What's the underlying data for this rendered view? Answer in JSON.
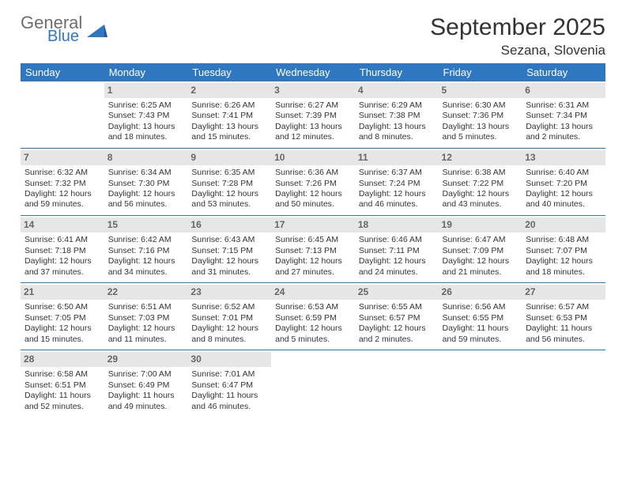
{
  "logo": {
    "line1": "General",
    "line2": "Blue",
    "accent": "#2f78c1",
    "gray": "#6e6e6e"
  },
  "header": {
    "month_title": "September 2025",
    "location": "Sezana, Slovenia"
  },
  "colors": {
    "header_bg": "#2f78c1",
    "header_fg": "#ffffff",
    "daynum_bg": "#e6e6e6",
    "daynum_fg": "#666666",
    "rule": "#2f78c1",
    "body_text": "#333333",
    "page_bg": "#ffffff"
  },
  "typography": {
    "month_title_pt": 30,
    "location_pt": 17,
    "weekday_pt": 13,
    "daynum_pt": 12,
    "cell_pt": 10.5
  },
  "calendar": {
    "weekdays": [
      "Sunday",
      "Monday",
      "Tuesday",
      "Wednesday",
      "Thursday",
      "Friday",
      "Saturday"
    ],
    "rows": [
      [
        null,
        {
          "n": "1",
          "sunrise": "6:25 AM",
          "sunset": "7:43 PM",
          "daylight": "13 hours and 18 minutes."
        },
        {
          "n": "2",
          "sunrise": "6:26 AM",
          "sunset": "7:41 PM",
          "daylight": "13 hours and 15 minutes."
        },
        {
          "n": "3",
          "sunrise": "6:27 AM",
          "sunset": "7:39 PM",
          "daylight": "13 hours and 12 minutes."
        },
        {
          "n": "4",
          "sunrise": "6:29 AM",
          "sunset": "7:38 PM",
          "daylight": "13 hours and 8 minutes."
        },
        {
          "n": "5",
          "sunrise": "6:30 AM",
          "sunset": "7:36 PM",
          "daylight": "13 hours and 5 minutes."
        },
        {
          "n": "6",
          "sunrise": "6:31 AM",
          "sunset": "7:34 PM",
          "daylight": "13 hours and 2 minutes."
        }
      ],
      [
        {
          "n": "7",
          "sunrise": "6:32 AM",
          "sunset": "7:32 PM",
          "daylight": "12 hours and 59 minutes."
        },
        {
          "n": "8",
          "sunrise": "6:34 AM",
          "sunset": "7:30 PM",
          "daylight": "12 hours and 56 minutes."
        },
        {
          "n": "9",
          "sunrise": "6:35 AM",
          "sunset": "7:28 PM",
          "daylight": "12 hours and 53 minutes."
        },
        {
          "n": "10",
          "sunrise": "6:36 AM",
          "sunset": "7:26 PM",
          "daylight": "12 hours and 50 minutes."
        },
        {
          "n": "11",
          "sunrise": "6:37 AM",
          "sunset": "7:24 PM",
          "daylight": "12 hours and 46 minutes."
        },
        {
          "n": "12",
          "sunrise": "6:38 AM",
          "sunset": "7:22 PM",
          "daylight": "12 hours and 43 minutes."
        },
        {
          "n": "13",
          "sunrise": "6:40 AM",
          "sunset": "7:20 PM",
          "daylight": "12 hours and 40 minutes."
        }
      ],
      [
        {
          "n": "14",
          "sunrise": "6:41 AM",
          "sunset": "7:18 PM",
          "daylight": "12 hours and 37 minutes."
        },
        {
          "n": "15",
          "sunrise": "6:42 AM",
          "sunset": "7:16 PM",
          "daylight": "12 hours and 34 minutes."
        },
        {
          "n": "16",
          "sunrise": "6:43 AM",
          "sunset": "7:15 PM",
          "daylight": "12 hours and 31 minutes."
        },
        {
          "n": "17",
          "sunrise": "6:45 AM",
          "sunset": "7:13 PM",
          "daylight": "12 hours and 27 minutes."
        },
        {
          "n": "18",
          "sunrise": "6:46 AM",
          "sunset": "7:11 PM",
          "daylight": "12 hours and 24 minutes."
        },
        {
          "n": "19",
          "sunrise": "6:47 AM",
          "sunset": "7:09 PM",
          "daylight": "12 hours and 21 minutes."
        },
        {
          "n": "20",
          "sunrise": "6:48 AM",
          "sunset": "7:07 PM",
          "daylight": "12 hours and 18 minutes."
        }
      ],
      [
        {
          "n": "21",
          "sunrise": "6:50 AM",
          "sunset": "7:05 PM",
          "daylight": "12 hours and 15 minutes."
        },
        {
          "n": "22",
          "sunrise": "6:51 AM",
          "sunset": "7:03 PM",
          "daylight": "12 hours and 11 minutes."
        },
        {
          "n": "23",
          "sunrise": "6:52 AM",
          "sunset": "7:01 PM",
          "daylight": "12 hours and 8 minutes."
        },
        {
          "n": "24",
          "sunrise": "6:53 AM",
          "sunset": "6:59 PM",
          "daylight": "12 hours and 5 minutes."
        },
        {
          "n": "25",
          "sunrise": "6:55 AM",
          "sunset": "6:57 PM",
          "daylight": "12 hours and 2 minutes."
        },
        {
          "n": "26",
          "sunrise": "6:56 AM",
          "sunset": "6:55 PM",
          "daylight": "11 hours and 59 minutes."
        },
        {
          "n": "27",
          "sunrise": "6:57 AM",
          "sunset": "6:53 PM",
          "daylight": "11 hours and 56 minutes."
        }
      ],
      [
        {
          "n": "28",
          "sunrise": "6:58 AM",
          "sunset": "6:51 PM",
          "daylight": "11 hours and 52 minutes."
        },
        {
          "n": "29",
          "sunrise": "7:00 AM",
          "sunset": "6:49 PM",
          "daylight": "11 hours and 49 minutes."
        },
        {
          "n": "30",
          "sunrise": "7:01 AM",
          "sunset": "6:47 PM",
          "daylight": "11 hours and 46 minutes."
        },
        null,
        null,
        null,
        null
      ]
    ],
    "labels": {
      "sunrise": "Sunrise:",
      "sunset": "Sunset:",
      "daylight": "Daylight:"
    }
  }
}
